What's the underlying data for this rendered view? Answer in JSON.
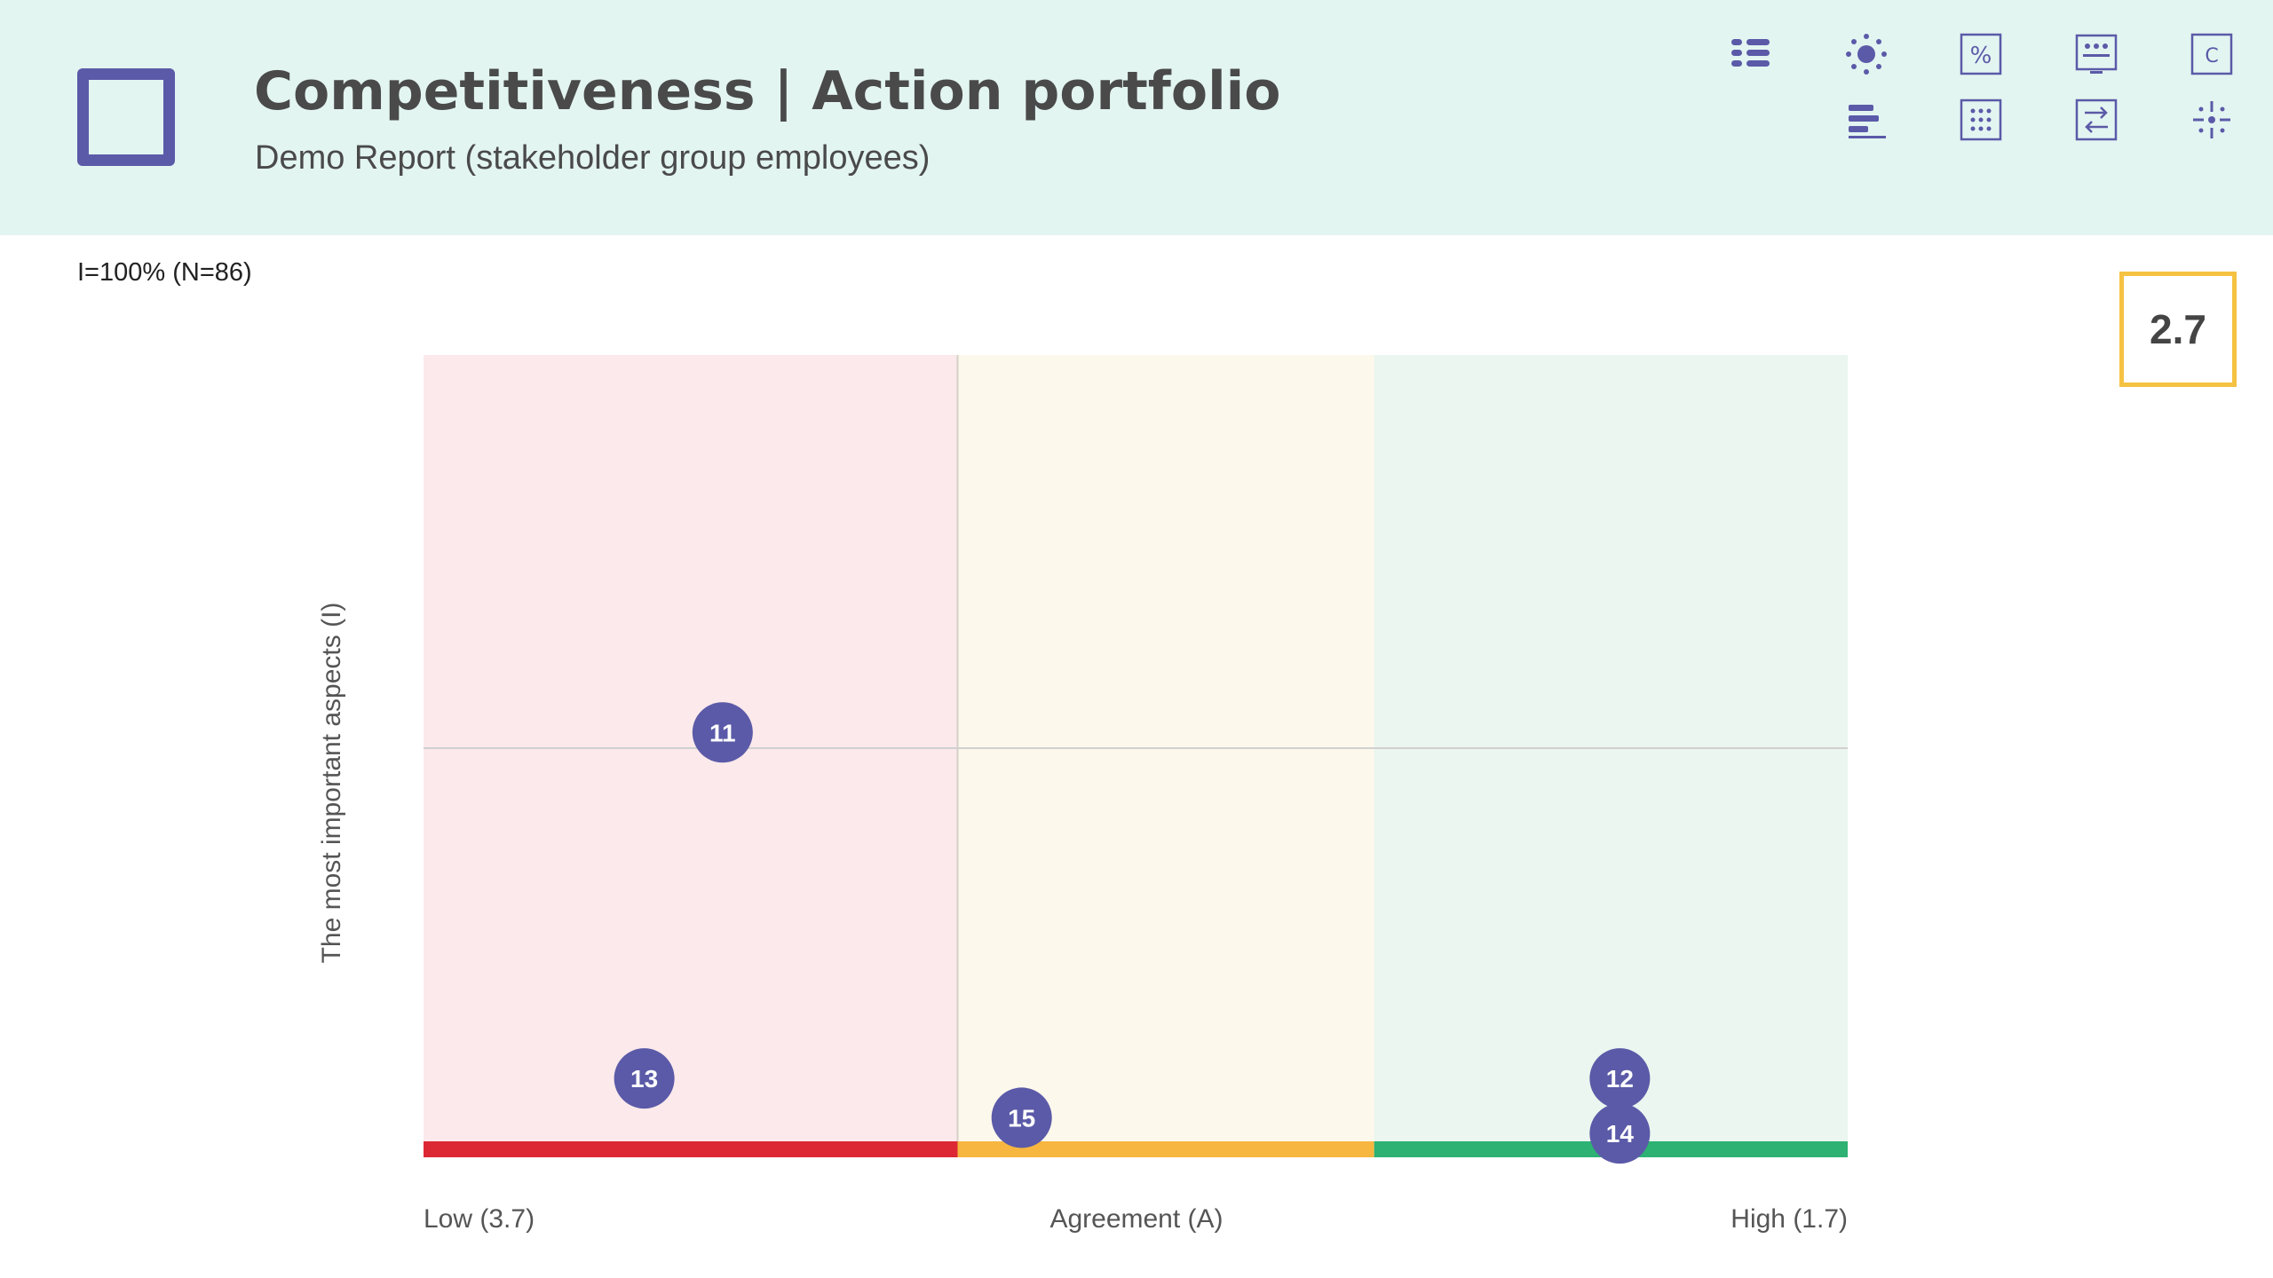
{
  "header": {
    "title": "Competitiveness | Action portfolio",
    "subtitle": "Demo Report (stakeholder group employees)",
    "logo_icon": "square-outline-logo",
    "toolbar_icons": [
      "list-view-icon",
      "sun-icon",
      "percent-icon",
      "dots-panel-icon",
      "c-box-icon",
      "bar-align-icon",
      "grid-table-icon",
      "swap-arrows-icon",
      "sparkle-icon"
    ],
    "colors": {
      "background": "#e3f5f1",
      "accent": "#5b5aa8"
    }
  },
  "sample_note": "I=100% (N=86)",
  "score": "2.7",
  "chart_data": {
    "type": "scatter",
    "title": "",
    "xlabel": "Agreement (A)",
    "ylabel": "The most important aspects (I)",
    "x_low_label": "Low (3.7)",
    "x_high_label": "High (1.7)",
    "xlim": [
      3.7,
      1.7
    ],
    "ylim": [
      0,
      100
    ],
    "x_reversed": true,
    "grid": false,
    "reference_lines": {
      "x": 2.95,
      "y": 50
    },
    "zones": [
      {
        "name": "low",
        "from": 3.7,
        "to": 2.95,
        "fill": "#fbe9eb",
        "bar": "#dc2834"
      },
      {
        "name": "medium",
        "from": 2.95,
        "to": 2.365,
        "fill": "#fdf8ec",
        "bar": "#f6b63f"
      },
      {
        "name": "high",
        "from": 2.365,
        "to": 1.7,
        "fill": "#eaf6ef",
        "bar": "#2db274"
      }
    ],
    "point_color": "#5b5aa8",
    "points": [
      {
        "label": "11",
        "x": 3.28,
        "y": 52
      },
      {
        "label": "13",
        "x": 3.39,
        "y": 8
      },
      {
        "label": "15",
        "x": 2.86,
        "y": 3
      },
      {
        "label": "12",
        "x": 2.02,
        "y": 8
      },
      {
        "label": "14",
        "x": 2.02,
        "y": 1
      }
    ]
  }
}
